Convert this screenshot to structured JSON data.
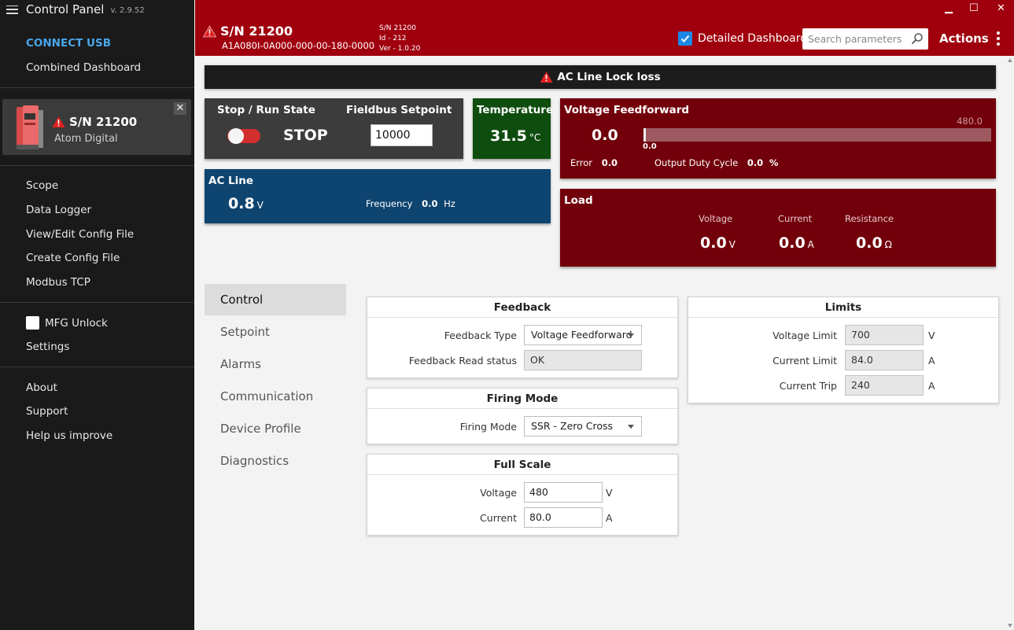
{
  "app": {
    "title": "Control Panel",
    "version": "v. 2.9.52"
  },
  "sidebar": {
    "connect": "CONNECT USB",
    "combined": "Combined Dashboard",
    "device": {
      "sn": "S/N 21200",
      "name": "Atom Digital",
      "close": "✕"
    },
    "tools": [
      "Scope",
      "Data Logger",
      "View/Edit Config File",
      "Create Config File",
      "Modbus TCP"
    ],
    "mfg_unlock": "MFG Unlock",
    "settings": "Settings",
    "about": "About",
    "support": "Support",
    "help": "Help us improve"
  },
  "header": {
    "sn": "S/N 21200",
    "part": "A1A080I-0A000-000-00-180-0000",
    "meta_sn": "S/N 21200",
    "meta_id": "Id - 212",
    "meta_ver": "Ver - 1.0.20",
    "detailed": "Detailed Dashboard",
    "search_placeholder": "Search parameters",
    "actions": "Actions",
    "win_min": "▁",
    "win_max": "☐",
    "win_close": "✕",
    "accent": "#a0000e"
  },
  "alert": {
    "text": "AC Line Lock loss"
  },
  "stop_tile": {
    "stop_run": "Stop / Run",
    "state_label": "State",
    "state": "STOP",
    "setpoint_label": "Fieldbus Setpoint",
    "setpoint": "10000"
  },
  "temperature": {
    "label": "Temperature",
    "value": "31.5",
    "unit": "°C"
  },
  "ac_line": {
    "label": "AC Line",
    "value": "0.8",
    "unit": "V",
    "freq_label": "Frequency",
    "freq_value": "0.0",
    "freq_unit": "Hz"
  },
  "vff": {
    "label": "Voltage Feedforward",
    "value": "0.0",
    "bar_max": "480.0",
    "bar_value": "0.0",
    "error_label": "Error",
    "error_value": "0.0",
    "duty_label": "Output Duty Cycle",
    "duty_value": "0.0",
    "duty_unit": "%",
    "bar_fraction": 0.0
  },
  "load": {
    "label": "Load",
    "voltage_label": "Voltage",
    "voltage": "0.0",
    "voltage_unit": "V",
    "current_label": "Current",
    "current": "0.0",
    "current_unit": "A",
    "resistance_label": "Resistance",
    "resistance": "0.0",
    "resistance_unit": "Ω"
  },
  "tabs": [
    "Control",
    "Setpoint",
    "Alarms",
    "Communication",
    "Device Profile",
    "Diagnostics"
  ],
  "feedback": {
    "title": "Feedback",
    "type_label": "Feedback Type",
    "type_value": "Voltage Feedforward",
    "read_label": "Feedback Read status",
    "read_value": "OK"
  },
  "firing": {
    "title": "Firing Mode",
    "label": "Firing Mode",
    "value": "SSR - Zero Cross"
  },
  "full_scale": {
    "title": "Full Scale",
    "voltage_label": "Voltage",
    "voltage": "480",
    "voltage_unit": "V",
    "current_label": "Current",
    "current": "80.0",
    "current_unit": "A"
  },
  "limits": {
    "title": "Limits",
    "vlimit_label": "Voltage Limit",
    "vlimit": "700",
    "vlimit_unit": "V",
    "climit_label": "Current Limit",
    "climit": "84.0",
    "climit_unit": "A",
    "ctrip_label": "Current Trip",
    "ctrip": "240",
    "ctrip_unit": "A"
  }
}
